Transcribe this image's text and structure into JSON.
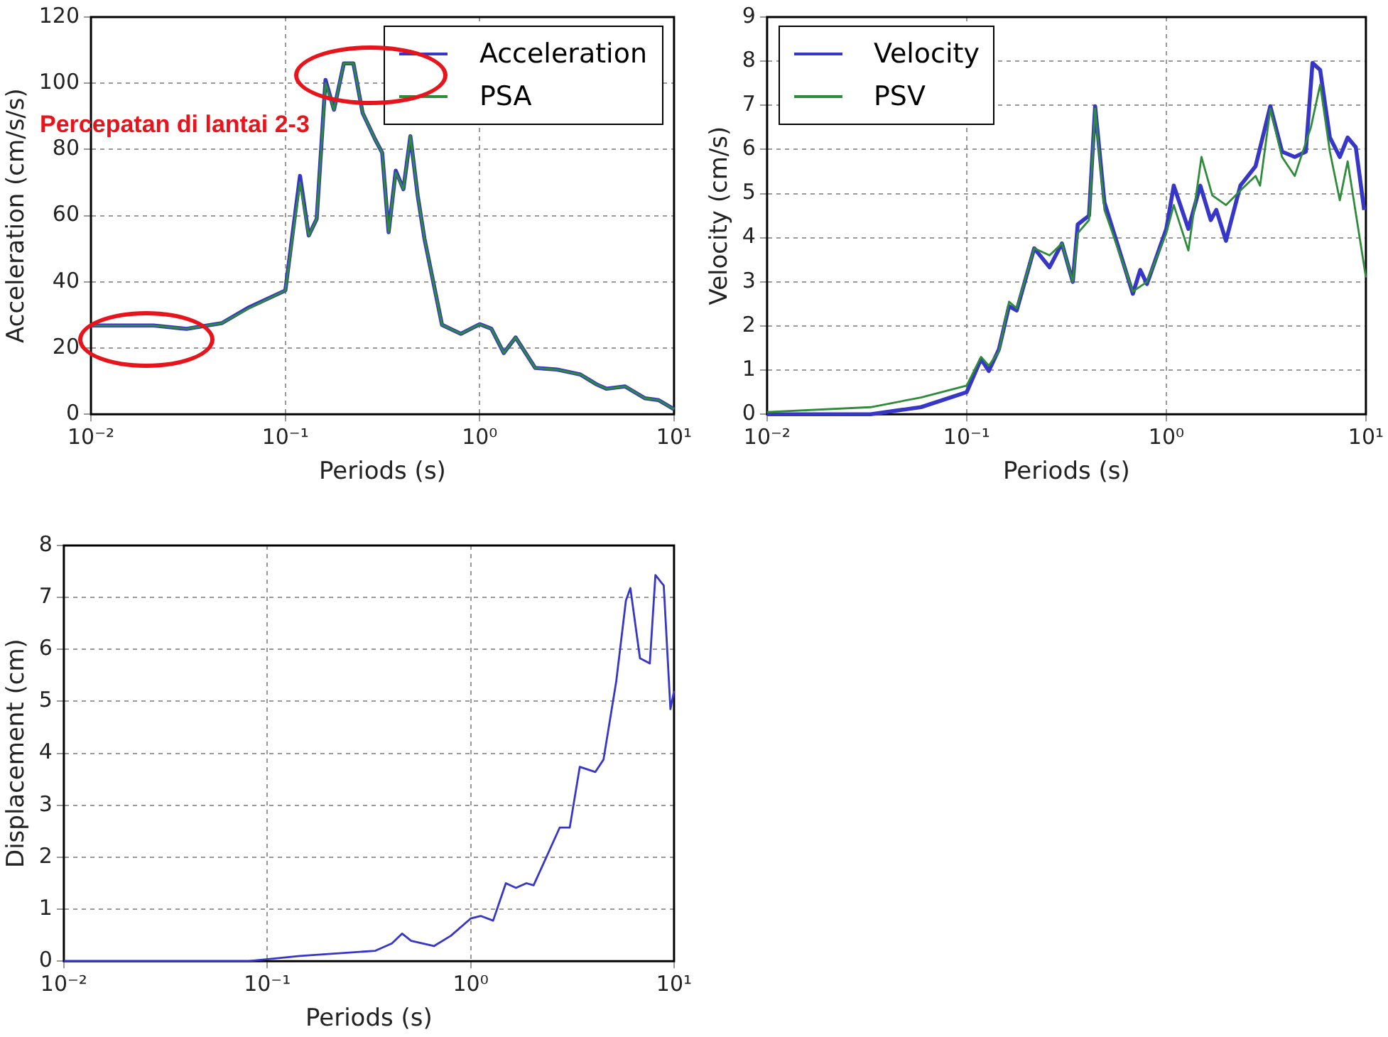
{
  "chart_data": [
    {
      "type": "line",
      "xlabel": "Periods (s)",
      "ylabel": "Acceleration (cm/s/s)",
      "log": "x",
      "xlim": [
        0.01,
        10
      ],
      "ylim": [
        0,
        120
      ],
      "xticks": [
        {
          "value": 0.01,
          "label": "10⁻²"
        },
        {
          "value": 0.1,
          "label": "10⁻¹"
        },
        {
          "value": 1,
          "label": "10⁰"
        },
        {
          "value": 10,
          "label": "10¹"
        }
      ],
      "yticks": [
        0,
        20,
        40,
        60,
        80,
        100,
        120
      ],
      "grid": true,
      "legend": "top right",
      "marker": "none",
      "line_style": "solid",
      "annotations": [
        "Percepatan di lantai 2-3"
      ],
      "x": [
        0.01,
        0.021,
        0.031,
        0.047,
        0.065,
        0.1,
        0.119,
        0.132,
        0.145,
        0.161,
        0.178,
        0.2,
        0.224,
        0.25,
        0.29,
        0.315,
        0.34,
        0.37,
        0.405,
        0.44,
        0.48,
        0.52,
        0.64,
        0.8,
        1,
        1.15,
        1.33,
        1.53,
        1.93,
        2.5,
        3.3,
        4,
        4.5,
        5.6,
        7.1,
        8.3,
        10
      ],
      "series": [
        {
          "name": "Acceleration",
          "color": "#3636c8",
          "values": [
            26.8,
            26.8,
            25.8,
            27.5,
            32.3,
            37.4,
            72,
            54,
            59,
            101,
            92,
            106,
            106,
            91,
            83,
            79,
            55,
            73.6,
            68,
            84,
            66,
            53,
            27,
            24.3,
            27.2,
            25.8,
            18.5,
            23.2,
            14,
            13.5,
            12,
            9,
            7.7,
            8.4,
            4.8,
            4.3,
            1.5
          ]
        },
        {
          "name": "PSA",
          "color": "#2e8b3a",
          "values": [
            26.8,
            26.8,
            25.8,
            27.5,
            32,
            37.4,
            70,
            54,
            59,
            100,
            92,
            106,
            106,
            91,
            83,
            79,
            55,
            73,
            68,
            84,
            66,
            53,
            27,
            24.3,
            27.2,
            25.8,
            18.5,
            23.2,
            14,
            13.5,
            12,
            9,
            7.7,
            8.4,
            4.8,
            4.3,
            1.5
          ]
        }
      ]
    },
    {
      "type": "line",
      "xlabel": "Periods (s)",
      "ylabel": "Velocity (cm/s)",
      "log": "x",
      "xlim": [
        0.01,
        10
      ],
      "ylim": [
        0,
        9
      ],
      "xticks": [
        {
          "value": 0.01,
          "label": "10⁻²"
        },
        {
          "value": 0.1,
          "label": "10⁻¹"
        },
        {
          "value": 1,
          "label": "10⁰"
        },
        {
          "value": 10,
          "label": "10¹"
        }
      ],
      "yticks": [
        0,
        1,
        2,
        3,
        4,
        5,
        6,
        7,
        8,
        9
      ],
      "grid": true,
      "legend": "top left",
      "marker": "none",
      "line_style": "solid",
      "series": [
        {
          "name": "Velocity",
          "color": "#3636c8",
          "x": [
            0.01,
            0.033,
            0.059,
            0.1,
            0.118,
            0.129,
            0.145,
            0.163,
            0.178,
            0.218,
            0.26,
            0.3,
            0.34,
            0.36,
            0.41,
            0.44,
            0.49,
            0.68,
            0.74,
            0.8,
            1,
            1.09,
            1.29,
            1.48,
            1.67,
            1.78,
            1.99,
            2.35,
            2.8,
            3.32,
            3.8,
            4.4,
            5,
            5.4,
            5.9,
            6.6,
            7.4,
            8.1,
            8.9,
            9.8
          ],
          "values": [
            0,
            0,
            0.16,
            0.5,
            1.25,
            0.98,
            1.47,
            2.45,
            2.35,
            3.76,
            3.33,
            3.87,
            3,
            4.3,
            4.5,
            6.98,
            4.8,
            2.73,
            3.27,
            2.95,
            4.2,
            5.18,
            4.2,
            5.18,
            4.4,
            4.63,
            3.93,
            5.18,
            5.62,
            6.98,
            5.95,
            5.83,
            5.95,
            7.96,
            7.8,
            6.27,
            5.83,
            6.27,
            6.05,
            4.63
          ]
        },
        {
          "name": "PSV",
          "color": "#2e8b3a",
          "x": [
            0.01,
            0.033,
            0.059,
            0.1,
            0.118,
            0.129,
            0.145,
            0.163,
            0.178,
            0.218,
            0.26,
            0.3,
            0.34,
            0.36,
            0.41,
            0.44,
            0.49,
            0.68,
            0.8,
            1,
            1.09,
            1.29,
            1.5,
            1.7,
            1.99,
            2.35,
            2.8,
            2.95,
            3.32,
            3.8,
            4.4,
            5.3,
            5.9,
            6.6,
            7.4,
            8.1,
            10
          ],
          "values": [
            0.05,
            0.16,
            0.38,
            0.65,
            1.3,
            1.1,
            1.42,
            2.55,
            2.4,
            3.76,
            3.6,
            3.87,
            3,
            4.1,
            4.4,
            6.92,
            4.63,
            2.78,
            3,
            4.1,
            4.74,
            3.71,
            5.83,
            4.96,
            4.74,
            5.07,
            5.4,
            5.18,
            6.92,
            5.83,
            5.4,
            6.5,
            7.47,
            5.95,
            4.85,
            5.73,
            3.1
          ]
        }
      ]
    },
    {
      "type": "line",
      "xlabel": "Periods (s)",
      "ylabel": "Displacement (cm)",
      "log": "x",
      "xlim": [
        0.01,
        10
      ],
      "ylim": [
        0,
        8
      ],
      "xticks": [
        {
          "value": 0.01,
          "label": "10⁻²"
        },
        {
          "value": 0.1,
          "label": "10⁻¹"
        },
        {
          "value": 1,
          "label": "10⁰"
        },
        {
          "value": 10,
          "label": "10¹"
        }
      ],
      "yticks": [
        0,
        1,
        2,
        3,
        4,
        5,
        6,
        7,
        8
      ],
      "grid": true,
      "marker": "none",
      "line_style": "solid",
      "series": [
        {
          "color": "#3636c8",
          "x": [
            0.01,
            0.081,
            0.145,
            0.34,
            0.41,
            0.46,
            0.51,
            0.66,
            0.8,
            1,
            1.12,
            1.29,
            1.49,
            1.67,
            1.88,
            2.04,
            2.74,
            3.07,
            3.44,
            4.1,
            4.5,
            5.2,
            5.8,
            6.1,
            6.8,
            7.6,
            8.1,
            8.9,
            9.6,
            10
          ],
          "values": [
            0,
            0,
            0.1,
            0.2,
            0.34,
            0.53,
            0.39,
            0.29,
            0.49,
            0.82,
            0.87,
            0.78,
            1.5,
            1.41,
            1.5,
            1.46,
            2.57,
            2.57,
            3.74,
            3.64,
            3.88,
            5.39,
            6.94,
            7.18,
            5.83,
            5.73,
            7.43,
            7.23,
            4.85,
            5.2
          ]
        }
      ]
    }
  ]
}
